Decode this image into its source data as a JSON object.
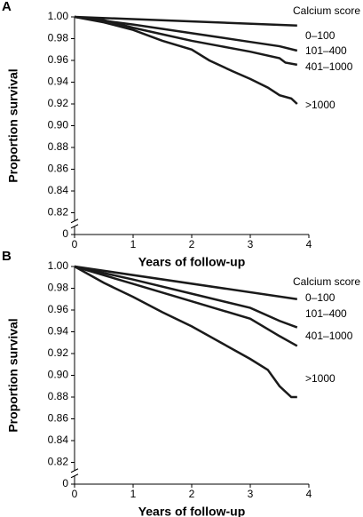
{
  "chart_data": [
    {
      "type": "line",
      "panel_label": "A",
      "xlabel": "Years of follow-up",
      "ylabel": "Proportion survival",
      "legend_title": "Calcium score",
      "xlim": [
        0,
        4
      ],
      "xticks": [
        0,
        1,
        2,
        3,
        4
      ],
      "ylim": [
        0.8,
        1.0
      ],
      "y_break": true,
      "yticks": [
        0,
        {
          "value": 0.82,
          "label": "0.82"
        },
        {
          "value": 0.84,
          "label": "0.84"
        },
        {
          "value": 0.86,
          "label": "0.86"
        },
        {
          "value": 0.88,
          "label": "0.88"
        },
        {
          "value": 0.9,
          "label": "0.90"
        },
        {
          "value": 0.92,
          "label": "0.92"
        },
        {
          "value": 0.94,
          "label": "0.94"
        },
        {
          "value": 0.96,
          "label": "0.96"
        },
        {
          "value": 0.98,
          "label": "0.98"
        },
        {
          "value": 1.0,
          "label": "1.00"
        }
      ],
      "series": [
        {
          "name": "0–100",
          "color": "#1a1a1a",
          "x": [
            0,
            3.8
          ],
          "values": [
            1.0,
            0.992
          ]
        },
        {
          "name": "101–400",
          "color": "#1a1a1a",
          "x": [
            0,
            1,
            2,
            2.5,
            3,
            3.5,
            3.8
          ],
          "values": [
            1.0,
            0.993,
            0.985,
            0.981,
            0.977,
            0.973,
            0.969
          ]
        },
        {
          "name": "401–1000",
          "color": "#1a1a1a",
          "x": [
            0,
            0.5,
            1,
            1.5,
            2,
            2.5,
            3,
            3.5,
            3.6,
            3.8
          ],
          "values": [
            1.0,
            0.997,
            0.99,
            0.984,
            0.978,
            0.973,
            0.968,
            0.962,
            0.958,
            0.956
          ]
        },
        {
          "name": ">1000",
          "color": "#1a1a1a",
          "x": [
            0,
            0.5,
            1,
            1.5,
            2,
            2.3,
            2.7,
            3,
            3.3,
            3.5,
            3.7,
            3.8
          ],
          "values": [
            1.0,
            0.995,
            0.988,
            0.978,
            0.97,
            0.96,
            0.95,
            0.943,
            0.935,
            0.928,
            0.925,
            0.92
          ]
        }
      ]
    },
    {
      "type": "line",
      "panel_label": "B",
      "xlabel": "Years of follow-up",
      "ylabel": "Proportion survival",
      "legend_title": "Calcium score",
      "xlim": [
        0,
        4
      ],
      "xticks": [
        0,
        1,
        2,
        3,
        4
      ],
      "ylim": [
        0.8,
        1.0
      ],
      "y_break": true,
      "yticks": [
        0,
        {
          "value": 0.82,
          "label": "0.82"
        },
        {
          "value": 0.84,
          "label": "0.84"
        },
        {
          "value": 0.86,
          "label": "0.86"
        },
        {
          "value": 0.88,
          "label": "0.88"
        },
        {
          "value": 0.9,
          "label": "0.90"
        },
        {
          "value": 0.92,
          "label": "0.92"
        },
        {
          "value": 0.94,
          "label": "0.94"
        },
        {
          "value": 0.96,
          "label": "0.96"
        },
        {
          "value": 0.98,
          "label": "0.98"
        },
        {
          "value": 1.0,
          "label": "1.00"
        }
      ],
      "series": [
        {
          "name": "0–100",
          "color": "#1a1a1a",
          "x": [
            0,
            3.8
          ],
          "values": [
            1.0,
            0.97
          ]
        },
        {
          "name": "101–400",
          "color": "#1a1a1a",
          "x": [
            0,
            1,
            2,
            3,
            3.5,
            3.8
          ],
          "values": [
            1.0,
            0.988,
            0.975,
            0.962,
            0.95,
            0.944
          ]
        },
        {
          "name": "401–1000",
          "color": "#1a1a1a",
          "x": [
            0,
            1,
            2,
            3,
            3.5,
            3.8
          ],
          "values": [
            1.0,
            0.984,
            0.968,
            0.952,
            0.936,
            0.927
          ]
        },
        {
          "name": ">1000",
          "color": "#1a1a1a",
          "x": [
            0,
            0.5,
            1,
            1.5,
            2,
            2.5,
            3,
            3.3,
            3.5,
            3.7,
            3.8
          ],
          "values": [
            1.0,
            0.985,
            0.972,
            0.958,
            0.945,
            0.93,
            0.915,
            0.905,
            0.89,
            0.88,
            0.88
          ]
        }
      ]
    }
  ]
}
